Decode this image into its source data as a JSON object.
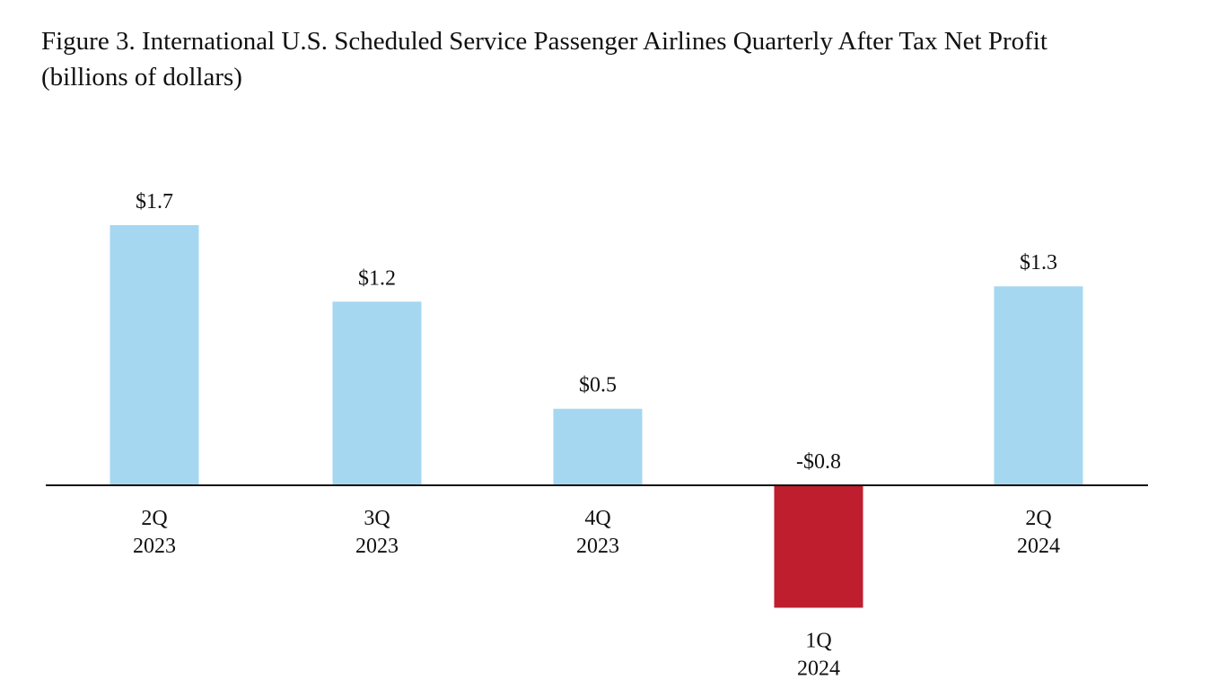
{
  "chart_data": {
    "type": "bar",
    "title": "Figure 3. International U.S. Scheduled Service Passenger Airlines Quarterly After Tax Net Profit",
    "subtitle": "(billions of dollars)",
    "categories": [
      [
        "2Q",
        "2023"
      ],
      [
        "3Q",
        "2023"
      ],
      [
        "4Q",
        "2023"
      ],
      [
        "1Q",
        "2024"
      ],
      [
        "2Q",
        "2024"
      ]
    ],
    "values": [
      1.7,
      1.2,
      0.5,
      -0.8,
      1.3
    ],
    "value_labels": [
      "$1.7",
      "$1.2",
      "$0.5",
      "-$0.8",
      "$1.3"
    ],
    "xlabel": "",
    "ylabel": "",
    "ylim": [
      -0.8,
      1.7
    ],
    "grid": false,
    "colors": {
      "positive": "#a6d7f1",
      "negative": "#be1e2d",
      "axis": "#111111"
    }
  }
}
